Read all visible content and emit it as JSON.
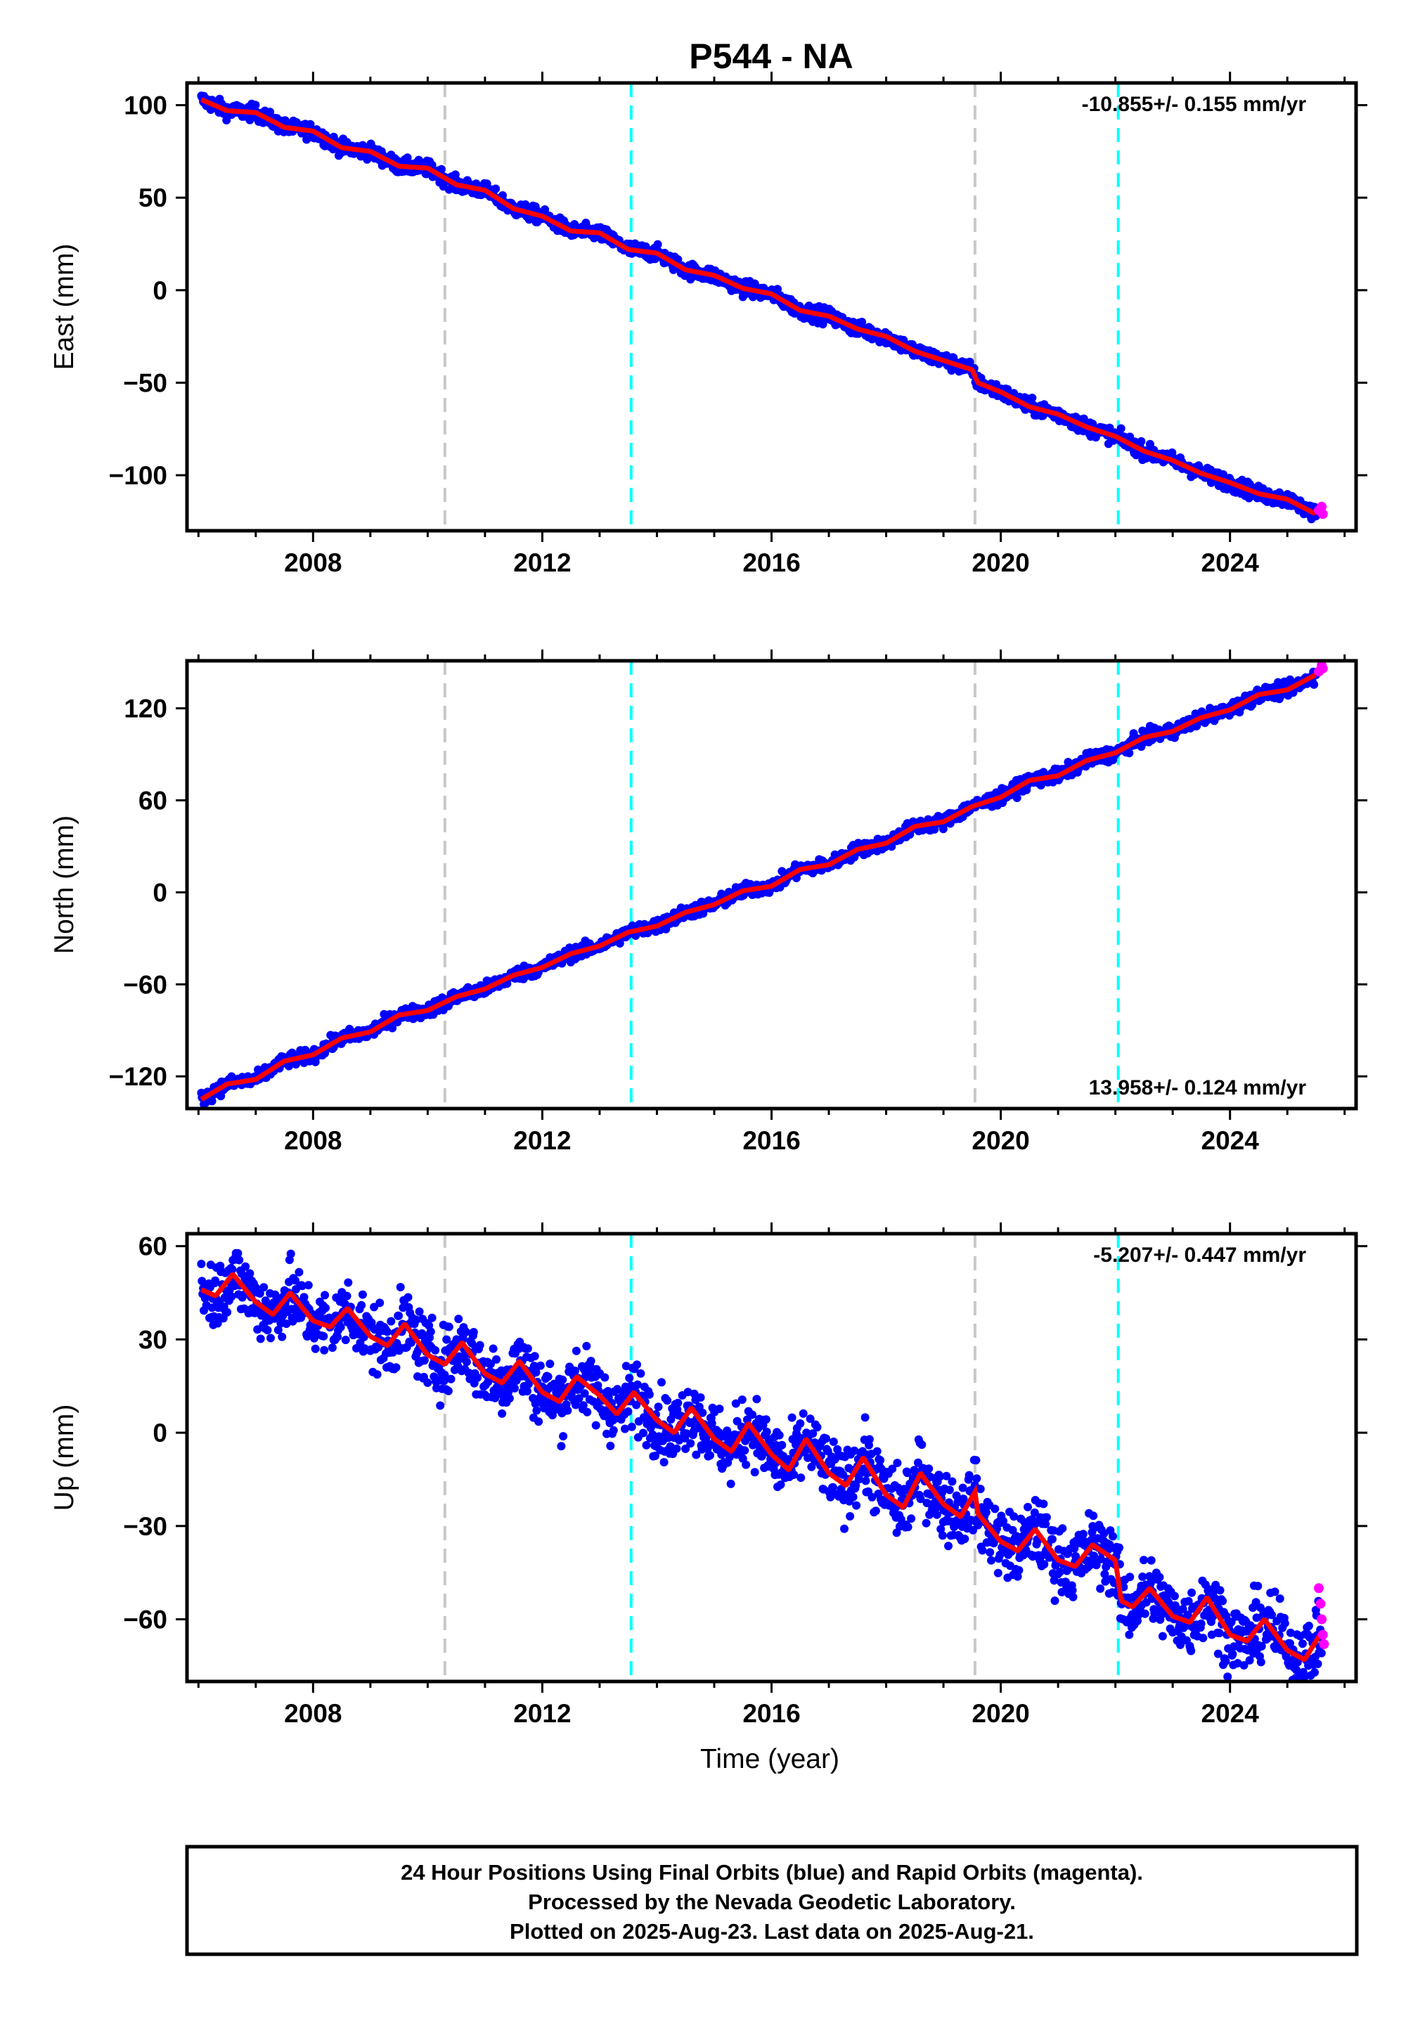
{
  "chart_data": {
    "title": "P544 - NA",
    "type": "scatter",
    "x_ticks": [
      "2008",
      "2012",
      "2016",
      "2020",
      "2024"
    ],
    "xlim": [
      2005.8,
      2026.2
    ],
    "xlabel": "Time (year)",
    "event_lines": [
      {
        "x": 2010.3,
        "color": "#c8c8c8"
      },
      {
        "x": 2013.55,
        "color": "#00ffff"
      },
      {
        "x": 2019.55,
        "color": "#c8c8c8"
      },
      {
        "x": 2022.05,
        "color": "#00ffff"
      }
    ],
    "colors": {
      "final_orbits": "#0000ff",
      "rapid_orbits": "#ff00ff",
      "model": "#ff0000"
    },
    "panels": [
      {
        "key": "east",
        "ylabel": "East (mm)",
        "ylim": [
          -130,
          112
        ],
        "y_ticks": [
          100,
          50,
          0,
          -50,
          -100
        ],
        "y_tick_labels": [
          "100",
          "50",
          "0",
          "−50",
          "−100"
        ],
        "rate": "-10.855+/- 0.155 mm/yr",
        "rate_position": "top-right",
        "series": {
          "x": [
            2006.05,
            2006.5,
            2007.0,
            2007.5,
            2008.0,
            2008.5,
            2009.0,
            2009.5,
            2010.0,
            2010.5,
            2011.0,
            2011.5,
            2012.0,
            2012.5,
            2013.0,
            2013.5,
            2014.0,
            2014.5,
            2015.0,
            2015.5,
            2016.0,
            2016.5,
            2017.0,
            2017.5,
            2018.0,
            2018.5,
            2019.0,
            2019.5,
            2019.6,
            2020.0,
            2020.5,
            2021.0,
            2021.5,
            2022.0,
            2022.5,
            2023.0,
            2023.5,
            2024.0,
            2024.5,
            2025.0,
            2025.5
          ],
          "y": [
            103,
            97,
            96,
            88,
            86,
            77,
            75,
            67,
            66,
            57,
            54,
            44,
            40,
            32,
            31,
            22,
            20,
            11,
            8,
            1,
            -2,
            -11,
            -14,
            -21,
            -25,
            -33,
            -38,
            -43,
            -50,
            -55,
            -63,
            -67,
            -74,
            -79,
            -87,
            -92,
            -99,
            -104,
            -110,
            -113,
            -121
          ],
          "noise": 2.0,
          "jitter_at_end": 0
        },
        "rapid": {
          "x": [
            2025.55,
            2025.6,
            2025.62
          ],
          "y": [
            -119,
            -117,
            -121
          ]
        }
      },
      {
        "key": "north",
        "ylabel": "North (mm)",
        "ylim": [
          -141,
          151
        ],
        "y_ticks": [
          120,
          60,
          0,
          -60,
          -120
        ],
        "y_tick_labels": [
          "120",
          "60",
          "0",
          "−60",
          "−120"
        ],
        "rate": "13.958+/- 0.124 mm/yr",
        "rate_position": "bottom-right",
        "series": {
          "x": [
            2006.05,
            2006.5,
            2007.0,
            2007.5,
            2008.0,
            2008.5,
            2009.0,
            2009.5,
            2010.0,
            2010.5,
            2011.0,
            2011.5,
            2012.0,
            2012.5,
            2013.0,
            2013.5,
            2014.0,
            2014.5,
            2015.0,
            2015.5,
            2016.0,
            2016.5,
            2017.0,
            2017.5,
            2018.0,
            2018.5,
            2019.0,
            2019.5,
            2020.0,
            2020.5,
            2021.0,
            2021.5,
            2022.0,
            2022.5,
            2023.0,
            2023.5,
            2024.0,
            2024.5,
            2025.0,
            2025.5
          ],
          "y": [
            -135,
            -125,
            -122,
            -110,
            -106,
            -95,
            -91,
            -80,
            -77,
            -68,
            -63,
            -54,
            -49,
            -40,
            -35,
            -26,
            -22,
            -13,
            -8,
            1,
            4,
            15,
            18,
            28,
            32,
            43,
            46,
            56,
            62,
            73,
            76,
            86,
            91,
            101,
            105,
            114,
            119,
            129,
            132,
            142
          ],
          "noise": 2.2,
          "jitter_at_end": 0
        },
        "rapid": {
          "x": [
            2025.55,
            2025.6,
            2025.62
          ],
          "y": [
            144,
            148,
            146
          ]
        }
      },
      {
        "key": "up",
        "ylabel": "Up (mm)",
        "ylim": [
          -80,
          64
        ],
        "y_ticks": [
          60,
          30,
          0,
          -30,
          -60
        ],
        "y_tick_labels": [
          "60",
          "30",
          "0",
          "−30",
          "−60"
        ],
        "rate": "-5.207+/- 0.447 mm/yr",
        "rate_position": "top-right",
        "series": {
          "x": [
            2006.05,
            2006.3,
            2006.6,
            2007.0,
            2007.3,
            2007.6,
            2008.0,
            2008.3,
            2008.6,
            2009.0,
            2009.3,
            2009.6,
            2010.0,
            2010.3,
            2010.6,
            2011.0,
            2011.3,
            2011.6,
            2012.0,
            2012.3,
            2012.6,
            2013.0,
            2013.3,
            2013.6,
            2014.0,
            2014.3,
            2014.6,
            2015.0,
            2015.3,
            2015.6,
            2016.0,
            2016.3,
            2016.6,
            2017.0,
            2017.3,
            2017.6,
            2018.0,
            2018.3,
            2018.6,
            2019.0,
            2019.3,
            2019.55,
            2019.6,
            2020.0,
            2020.3,
            2020.6,
            2021.0,
            2021.3,
            2021.6,
            2022.0,
            2022.1,
            2022.3,
            2022.6,
            2023.0,
            2023.3,
            2023.6,
            2024.0,
            2024.3,
            2024.6,
            2025.0,
            2025.3,
            2025.6
          ],
          "y": [
            46,
            44,
            51,
            42,
            38,
            45,
            36,
            34,
            40,
            31,
            28,
            35,
            25,
            22,
            29,
            19,
            16,
            23,
            13,
            10,
            18,
            12,
            6,
            13,
            4,
            0,
            8,
            -2,
            -6,
            3,
            -7,
            -12,
            -2,
            -13,
            -17,
            -8,
            -20,
            -24,
            -13,
            -23,
            -27,
            -19,
            -26,
            -35,
            -38,
            -31,
            -41,
            -43,
            -36,
            -41,
            -54,
            -56,
            -50,
            -59,
            -61,
            -53,
            -65,
            -67,
            -60,
            -70,
            -73,
            -64
          ],
          "noise": 5.5,
          "jitter_at_end": 0
        },
        "rapid": {
          "x": [
            2025.55,
            2025.58,
            2025.6,
            2025.62,
            2025.64
          ],
          "y": [
            -50,
            -55,
            -60,
            -65,
            -68
          ]
        }
      }
    ]
  },
  "caption": {
    "line1": "24 Hour Positions Using Final Orbits (blue) and Rapid Orbits (magenta).",
    "line2": "Processed by the Nevada Geodetic Laboratory.",
    "line3": "Plotted on 2025-Aug-23. Last data on 2025-Aug-21."
  }
}
